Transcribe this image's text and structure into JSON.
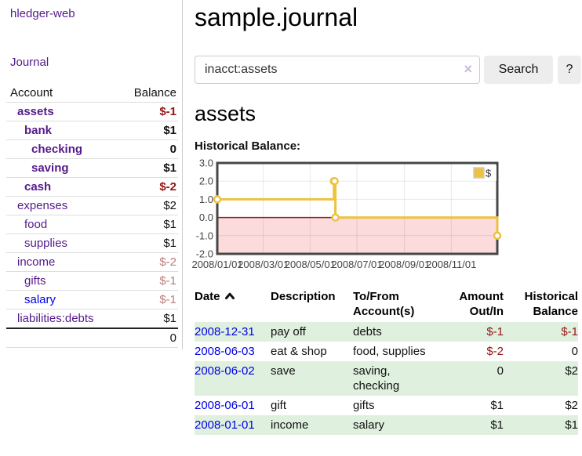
{
  "app": {
    "brand": "hledger-web",
    "nav": {
      "journal": "Journal"
    }
  },
  "sidebar": {
    "columns": {
      "account": "Account",
      "balance": "Balance"
    },
    "rows": [
      {
        "label": "assets",
        "balance": "$-1",
        "depth": 0,
        "emphasis": true,
        "balance_tone": "neg-strong",
        "link_color": "purple"
      },
      {
        "label": "bank",
        "balance": "$1",
        "depth": 1,
        "emphasis": true,
        "balance_tone": "pos",
        "link_color": "purple"
      },
      {
        "label": "checking",
        "balance": "0",
        "depth": 2,
        "emphasis": true,
        "balance_tone": "pos",
        "link_color": "purple"
      },
      {
        "label": "saving",
        "balance": "$1",
        "depth": 2,
        "emphasis": true,
        "balance_tone": "pos",
        "link_color": "purple"
      },
      {
        "label": "cash",
        "balance": "$-2",
        "depth": 1,
        "emphasis": true,
        "balance_tone": "neg-strong",
        "link_color": "purple"
      },
      {
        "label": "expenses",
        "balance": "$2",
        "depth": 0,
        "emphasis": false,
        "balance_tone": "pos",
        "link_color": "purple"
      },
      {
        "label": "food",
        "balance": "$1",
        "depth": 1,
        "emphasis": false,
        "balance_tone": "pos",
        "link_color": "purple"
      },
      {
        "label": "supplies",
        "balance": "$1",
        "depth": 1,
        "emphasis": false,
        "balance_tone": "pos",
        "link_color": "purple"
      },
      {
        "label": "income",
        "balance": "$-2",
        "depth": 0,
        "emphasis": false,
        "balance_tone": "neg-soft",
        "link_color": "purple"
      },
      {
        "label": "gifts",
        "balance": "$-1",
        "depth": 1,
        "emphasis": false,
        "balance_tone": "neg-soft",
        "link_color": "purple"
      },
      {
        "label": "salary",
        "balance": "$-1",
        "depth": 1,
        "emphasis": false,
        "balance_tone": "neg-soft",
        "link_color": "blue"
      },
      {
        "label": "liabilities:debts",
        "balance": "$1",
        "depth": 0,
        "emphasis": false,
        "balance_tone": "pos",
        "link_color": "purple"
      }
    ],
    "total": "0"
  },
  "main": {
    "title": "sample.journal",
    "search": {
      "value": "inacct:assets",
      "clear_icon": "×",
      "search_button": "Search",
      "help_button": "?"
    },
    "account_heading": "assets",
    "chart_title": "Historical Balance:"
  },
  "chart_data": {
    "type": "line",
    "title": "Historical Balance",
    "x_ticks": [
      "2008/01/01",
      "2008/03/01",
      "2008/05/01",
      "2008/07/01",
      "2008/09/01",
      "2008/11/01"
    ],
    "y_ticks": [
      "3.0",
      "2.0",
      "1.0",
      "0.0",
      "-1.0",
      "-2.0"
    ],
    "ylim": [
      -2,
      3
    ],
    "x_range": [
      "2008-01-01",
      "2008-12-31"
    ],
    "grid": true,
    "legend": [
      {
        "label": "$",
        "color": "#edc240"
      }
    ],
    "legend_position": "top-right",
    "series": [
      {
        "name": "$",
        "color": "#edc240",
        "step": true,
        "points": [
          [
            "2008-01-01",
            1
          ],
          [
            "2008-06-01",
            2
          ],
          [
            "2008-06-02",
            2
          ],
          [
            "2008-06-03",
            0
          ],
          [
            "2008-12-31",
            -1
          ]
        ]
      }
    ],
    "negative_fill": "#fbdbdb",
    "zero_line_color": "#8b1f1f"
  },
  "register": {
    "columns": [
      {
        "label": "Date",
        "sortable": true,
        "sorted": "asc"
      },
      {
        "label": "Description"
      },
      {
        "label": "To/From Account(s)"
      },
      {
        "label": "Amount Out/In",
        "align": "right"
      },
      {
        "label": "Historical Balance",
        "align": "right"
      }
    ],
    "rows": [
      {
        "date": "2008-12-31",
        "description": "pay off",
        "accounts": "debts",
        "amount": "$-1",
        "amount_negative": true,
        "balance": "$-1",
        "balance_negative": true
      },
      {
        "date": "2008-06-03",
        "description": "eat & shop",
        "accounts": "food, supplies",
        "amount": "$-2",
        "amount_negative": true,
        "balance": "0",
        "balance_negative": false
      },
      {
        "date": "2008-06-02",
        "description": "save",
        "accounts": "saving, checking",
        "amount": "0",
        "amount_negative": false,
        "balance": "$2",
        "balance_negative": false
      },
      {
        "date": "2008-06-01",
        "description": "gift",
        "accounts": "gifts",
        "amount": "$1",
        "amount_negative": false,
        "balance": "$2",
        "balance_negative": false
      },
      {
        "date": "2008-01-01",
        "description": "income",
        "accounts": "salary",
        "amount": "$1",
        "amount_negative": false,
        "balance": "$1",
        "balance_negative": false
      }
    ]
  },
  "colors": {
    "link_purple": "#551a8b",
    "link_blue": "#0000ee",
    "negative_strong": "#941414",
    "negative_soft": "#bd7b7b",
    "row_stripe_green": "#dff0df",
    "chart_line_gold": "#edc240",
    "chart_negative_fill": "#fbdbdb",
    "chart_zero_line": "#8b1f1f"
  }
}
